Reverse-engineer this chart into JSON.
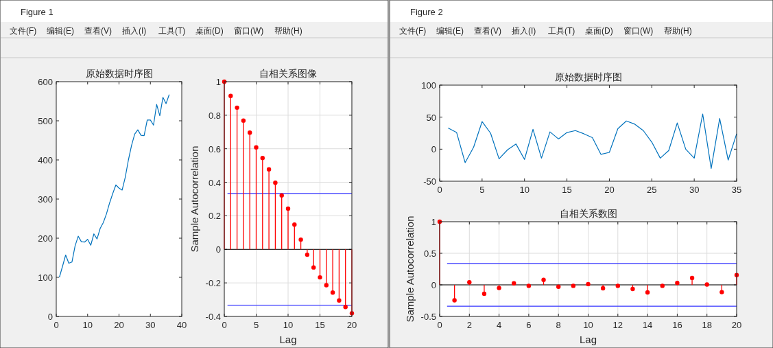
{
  "chart_data": [
    {
      "type": "other",
      "title": "Figure 1",
      "annotations": [
        "文件(F)",
        "编辑(E)",
        "查看(V)",
        "插入(I)",
        "工具(T)",
        "桌面(D)",
        "窗口(W)",
        "帮助(H)"
      ]
    },
    {
      "type": "line",
      "title": "原始数据时序图",
      "x": [
        1,
        2,
        3,
        4,
        5,
        6,
        7,
        8,
        9,
        10,
        11,
        12,
        13,
        14,
        15,
        16,
        17,
        18,
        19,
        20,
        21,
        22,
        23,
        24,
        25,
        26,
        27,
        28,
        29,
        30,
        31,
        32,
        33,
        34,
        35,
        36
      ],
      "values": [
        100,
        128,
        157,
        136,
        139,
        180,
        205,
        191,
        190,
        197,
        182,
        211,
        198,
        225,
        240,
        262,
        290,
        314,
        336,
        328,
        323,
        356,
        400,
        437,
        466,
        477,
        463,
        462,
        502,
        502,
        489,
        542,
        513,
        560,
        544,
        567
      ],
      "color": "#0072bd",
      "xlim": [
        0,
        40
      ],
      "ylim": [
        0,
        600
      ],
      "xticks": [
        0,
        10,
        20,
        30,
        40
      ],
      "yticks": [
        0,
        100,
        200,
        300,
        400,
        500,
        600
      ]
    },
    {
      "type": "lollipop",
      "title": "自相关系图像",
      "xlabel": "Lag",
      "ylabel": "Sample Autocorrelation",
      "x": [
        0,
        1,
        2,
        3,
        4,
        5,
        6,
        7,
        8,
        9,
        10,
        11,
        12,
        13,
        14,
        15,
        16,
        17,
        18,
        19,
        20
      ],
      "values": [
        1,
        0.915,
        0.845,
        0.768,
        0.696,
        0.608,
        0.545,
        0.477,
        0.397,
        0.322,
        0.243,
        0.148,
        0.058,
        -0.032,
        -0.108,
        -0.167,
        -0.214,
        -0.258,
        -0.305,
        -0.344,
        -0.381
      ],
      "color": "#ff0000",
      "marker": "circle",
      "grid": true,
      "xlim": [
        0,
        20
      ],
      "ylim": [
        -0.4,
        1
      ],
      "xticks": [
        0,
        5,
        10,
        15,
        20
      ],
      "yticks": [
        -0.4,
        -0.2,
        0,
        0.2,
        0.4,
        0.6,
        0.8,
        1
      ],
      "ref_lines": [
        {
          "axis": "y",
          "value": 0.333,
          "color": "#3333ff"
        },
        {
          "axis": "y",
          "value": -0.333,
          "color": "#3333ff"
        }
      ]
    },
    {
      "type": "other",
      "title": "Figure 2",
      "annotations": [
        "文件(F)",
        "编辑(E)",
        "查看(V)",
        "插入(I)",
        "工具(T)",
        "桌面(D)",
        "窗口(W)",
        "帮助(H)"
      ]
    },
    {
      "type": "line",
      "title": "原始数据时序图",
      "x": [
        1,
        2,
        3,
        4,
        5,
        6,
        7,
        8,
        9,
        10,
        11,
        12,
        13,
        14,
        15,
        16,
        17,
        18,
        19,
        20,
        21,
        22,
        23,
        24,
        25,
        26,
        27,
        28,
        29,
        30,
        31,
        32,
        33,
        34,
        35
      ],
      "values": [
        33,
        26,
        -21,
        3,
        43,
        25,
        -15,
        -1,
        8,
        -16,
        31,
        -14,
        27,
        16,
        26,
        29,
        24,
        18,
        -8,
        -5,
        32,
        44,
        39,
        29,
        11,
        -14,
        -2,
        41,
        0,
        -14,
        55,
        -30,
        48,
        -17,
        24
      ],
      "color": "#0072bd",
      "xlim": [
        0,
        35
      ],
      "ylim": [
        -50,
        100
      ],
      "xticks": [
        0,
        5,
        10,
        15,
        20,
        25,
        30,
        35
      ],
      "yticks": [
        -50,
        0,
        50,
        100
      ]
    },
    {
      "type": "lollipop",
      "title": "自相关系数图",
      "xlabel": "Lag",
      "ylabel": "Sample Autocorrelation",
      "x": [
        0,
        1,
        2,
        3,
        4,
        5,
        6,
        7,
        8,
        9,
        10,
        11,
        12,
        13,
        14,
        15,
        16,
        17,
        18,
        19,
        20
      ],
      "values": [
        1,
        -0.245,
        0.04,
        -0.14,
        -0.05,
        0.025,
        -0.015,
        0.08,
        -0.03,
        -0.015,
        0.012,
        -0.055,
        -0.015,
        -0.065,
        -0.12,
        -0.015,
        0.03,
        0.11,
        0.005,
        -0.115,
        0.155
      ],
      "color": "#ff0000",
      "marker": "circle",
      "grid": true,
      "xlim": [
        0,
        20
      ],
      "ylim": [
        -0.5,
        1
      ],
      "xticks": [
        0,
        2,
        4,
        6,
        8,
        10,
        12,
        14,
        16,
        18,
        20
      ],
      "yticks": [
        -0.5,
        0,
        0.5,
        1
      ],
      "ref_lines": [
        {
          "axis": "y",
          "value": 0.338,
          "color": "#3333ff"
        },
        {
          "axis": "y",
          "value": -0.338,
          "color": "#3333ff"
        }
      ]
    }
  ]
}
